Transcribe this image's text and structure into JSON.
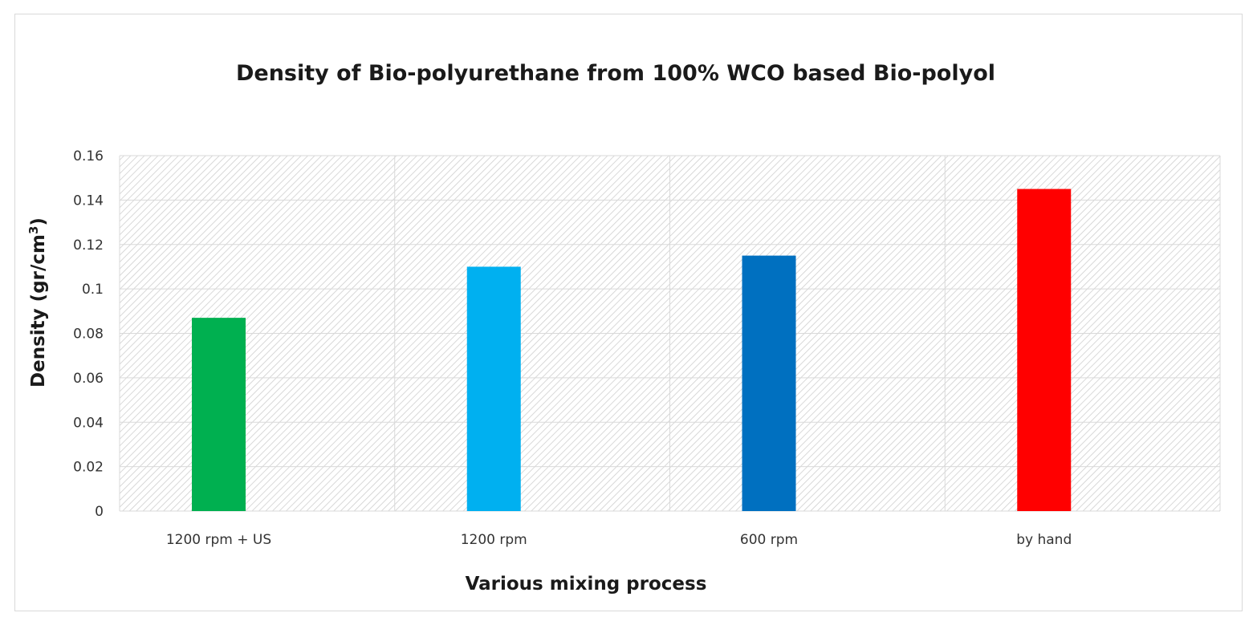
{
  "chart_data": {
    "type": "bar",
    "title": "Density of Bio-polyurethane from 100% WCO based Bio-polyol",
    "xlabel": "Various mixing process",
    "ylabel_main": "Density (gr/cm",
    "ylabel_sup": "3",
    "ylabel_close": ")",
    "categories": [
      "1200 rpm + US",
      "1200 rpm",
      "600 rpm",
      "by hand"
    ],
    "values": [
      0.087,
      0.11,
      0.115,
      0.145
    ],
    "colors": [
      "#00b050",
      "#00b0f0",
      "#0070c0",
      "#ff0000"
    ],
    "ylim": [
      0,
      0.16
    ],
    "yticks": [
      0,
      0.02,
      0.04,
      0.06,
      0.08,
      0.1,
      0.12,
      0.14,
      0.16
    ],
    "ytick_labels": [
      "0",
      "0.02",
      "0.04",
      "0.06",
      "0.08",
      "0.1",
      "0.12",
      "0.14",
      "0.16"
    ],
    "grid": true,
    "plot_area_pattern": "diagonal-hatch",
    "legend": "none"
  }
}
